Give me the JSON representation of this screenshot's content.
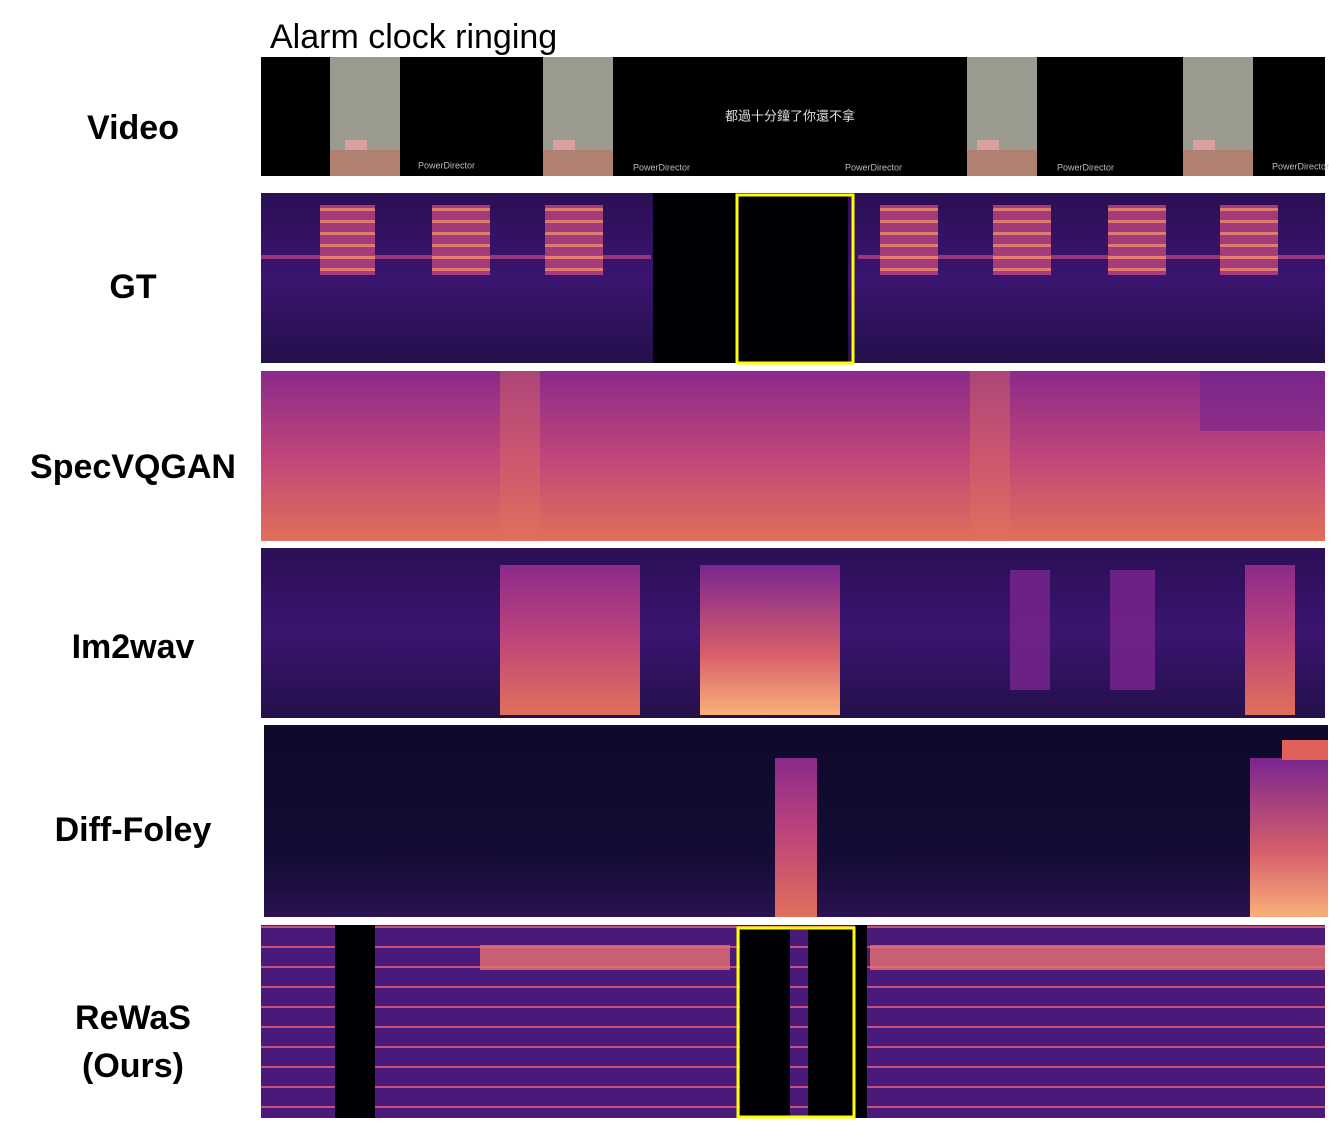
{
  "title": "Alarm clock ringing",
  "rows": [
    {
      "label": "Video"
    },
    {
      "label": "GT"
    },
    {
      "label": "SpecVQGAN"
    },
    {
      "label": "Im2wav"
    },
    {
      "label": "Diff-Foley"
    },
    {
      "label": "ReWaS",
      "sublabel": "(Ours)"
    }
  ],
  "video": {
    "caption": "都過十分鐘了你還不拿",
    "watermarks": [
      "PowerDirector",
      "PowerDirector",
      "PowerDirector",
      "PowerDirector",
      "PowerDirector"
    ]
  }
}
